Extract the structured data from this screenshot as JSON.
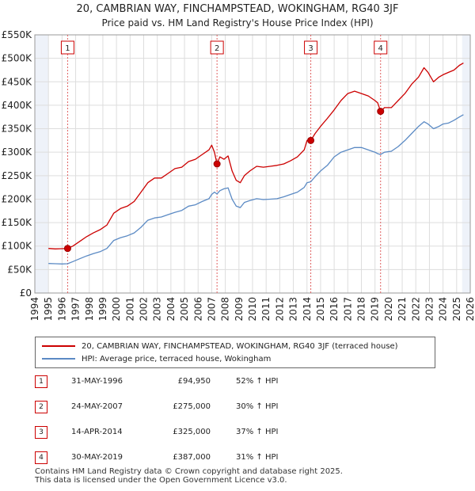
{
  "title": "20, CAMBRIAN WAY, FINCHAMPSTEAD, WOKINGHAM, RG40 3JF",
  "subtitle": "Price paid vs. HM Land Registry's House Price Index (HPI)",
  "colors": {
    "property": "#cc0000",
    "hpi": "#5b8ac4",
    "grid": "#dddddd",
    "shade": "#eef2f9",
    "marker_line": "#e06060"
  },
  "chart_data": {
    "type": "line",
    "title": "20, CAMBRIAN WAY, FINCHAMPSTEAD, WOKINGHAM, RG40 3JF",
    "subtitle": "Price paid vs. HM Land Registry's House Price Index (HPI)",
    "xlim": [
      1994,
      2026
    ],
    "ylim": [
      0,
      550000
    ],
    "x_ticks": [
      "1994",
      "1995",
      "1996",
      "1997",
      "1998",
      "1999",
      "2000",
      "2001",
      "2002",
      "2003",
      "2004",
      "2005",
      "2006",
      "2007",
      "2008",
      "2009",
      "2010",
      "2011",
      "2012",
      "2013",
      "2014",
      "2015",
      "2016",
      "2017",
      "2018",
      "2019",
      "2020",
      "2021",
      "2022",
      "2023",
      "2024",
      "2025",
      "2026"
    ],
    "y_ticks": [
      {
        "value": 0,
        "label": "£0"
      },
      {
        "value": 50000,
        "label": "£50K"
      },
      {
        "value": 100000,
        "label": "£100K"
      },
      {
        "value": 150000,
        "label": "£150K"
      },
      {
        "value": 200000,
        "label": "£200K"
      },
      {
        "value": 250000,
        "label": "£250K"
      },
      {
        "value": 300000,
        "label": "£300K"
      },
      {
        "value": 350000,
        "label": "£350K"
      },
      {
        "value": 400000,
        "label": "£400K"
      },
      {
        "value": 450000,
        "label": "£450K"
      },
      {
        "value": 500000,
        "label": "£500K"
      },
      {
        "value": 550000,
        "label": "£550K"
      }
    ],
    "shaded_ranges": [
      [
        1994,
        1995
      ],
      [
        2025.4,
        2026
      ]
    ],
    "series": [
      {
        "name": "20, CAMBRIAN WAY, FINCHAMPSTEAD, WOKINGHAM, RG40 3JF (terraced house)",
        "color": "#cc0000",
        "x": [
          1995.0,
          1995.5,
          1996.0,
          1996.41,
          1996.8,
          1997.3,
          1997.8,
          1998.3,
          1998.8,
          1999.3,
          1999.8,
          2000.3,
          2000.8,
          2001.3,
          2001.8,
          2002.3,
          2002.8,
          2003.3,
          2003.8,
          2004.3,
          2004.8,
          2005.3,
          2005.8,
          2006.3,
          2006.8,
          2007.0,
          2007.2,
          2007.39,
          2007.6,
          2007.9,
          2008.2,
          2008.5,
          2008.8,
          2009.1,
          2009.4,
          2009.8,
          2010.3,
          2010.8,
          2011.3,
          2011.8,
          2012.3,
          2012.8,
          2013.3,
          2013.8,
          2014.0,
          2014.28,
          2014.6,
          2015.0,
          2015.5,
          2016.0,
          2016.5,
          2017.0,
          2017.5,
          2018.0,
          2018.5,
          2019.0,
          2019.2,
          2019.41,
          2019.7,
          2020.2,
          2020.7,
          2021.2,
          2021.7,
          2022.2,
          2022.6,
          2022.9,
          2023.3,
          2023.7,
          2024.0,
          2024.4,
          2024.8,
          2025.2,
          2025.5
        ],
        "values": [
          95000,
          94000,
          94500,
          94950,
          100000,
          110000,
          120000,
          128000,
          135000,
          145000,
          170000,
          180000,
          185000,
          195000,
          215000,
          235000,
          245000,
          245000,
          255000,
          265000,
          268000,
          280000,
          285000,
          295000,
          305000,
          315000,
          300000,
          275000,
          290000,
          285000,
          292000,
          260000,
          240000,
          235000,
          250000,
          260000,
          270000,
          268000,
          270000,
          272000,
          275000,
          282000,
          290000,
          305000,
          325000,
          325000,
          340000,
          355000,
          372000,
          390000,
          410000,
          425000,
          430000,
          425000,
          420000,
          410000,
          405000,
          387000,
          395000,
          395000,
          410000,
          425000,
          445000,
          460000,
          480000,
          470000,
          450000,
          460000,
          465000,
          470000,
          475000,
          485000,
          490000
        ]
      },
      {
        "name": "HPI: Average price, terraced house, Wokingham",
        "color": "#5b8ac4",
        "x": [
          1995.0,
          1995.5,
          1996.0,
          1996.41,
          1996.8,
          1997.3,
          1997.8,
          1998.3,
          1998.8,
          1999.3,
          1999.8,
          2000.3,
          2000.8,
          2001.3,
          2001.8,
          2002.3,
          2002.8,
          2003.3,
          2003.8,
          2004.3,
          2004.8,
          2005.3,
          2005.8,
          2006.3,
          2006.8,
          2007.0,
          2007.2,
          2007.39,
          2007.6,
          2007.9,
          2008.2,
          2008.5,
          2008.8,
          2009.1,
          2009.4,
          2009.8,
          2010.3,
          2010.8,
          2011.3,
          2011.8,
          2012.3,
          2012.8,
          2013.3,
          2013.8,
          2014.0,
          2014.28,
          2014.6,
          2015.0,
          2015.5,
          2016.0,
          2016.5,
          2017.0,
          2017.5,
          2018.0,
          2018.5,
          2019.0,
          2019.2,
          2019.41,
          2019.7,
          2020.2,
          2020.7,
          2021.2,
          2021.7,
          2022.2,
          2022.6,
          2022.9,
          2023.3,
          2023.7,
          2024.0,
          2024.4,
          2024.8,
          2025.2,
          2025.5
        ],
        "values": [
          63000,
          62500,
          62000,
          62400,
          67000,
          73000,
          79000,
          84000,
          88000,
          95000,
          112000,
          118000,
          122000,
          128000,
          140000,
          155000,
          160000,
          162000,
          167000,
          172000,
          176000,
          185000,
          188000,
          195000,
          201000,
          210000,
          215000,
          211000,
          218000,
          222000,
          224000,
          200000,
          185000,
          182000,
          193000,
          197000,
          201000,
          199000,
          200000,
          201000,
          205000,
          210000,
          215000,
          225000,
          235000,
          237000,
          248000,
          260000,
          272000,
          290000,
          300000,
          305000,
          310000,
          310000,
          305000,
          300000,
          297000,
          295000,
          300000,
          302000,
          312000,
          325000,
          340000,
          355000,
          365000,
          360000,
          350000,
          355000,
          360000,
          362000,
          368000,
          375000,
          380000
        ]
      }
    ],
    "sales": [
      {
        "id": "1",
        "x": 1996.41,
        "value": 94950
      },
      {
        "id": "2",
        "x": 2007.39,
        "value": 275000
      },
      {
        "id": "3",
        "x": 2014.28,
        "value": 325000
      },
      {
        "id": "4",
        "x": 2019.41,
        "value": 387000
      }
    ]
  },
  "legend": {
    "property": "20, CAMBRIAN WAY, FINCHAMPSTEAD, WOKINGHAM, RG40 3JF (terraced house)",
    "hpi": "HPI: Average price, terraced house, Wokingham"
  },
  "sales_table": [
    {
      "num": "1",
      "date": "31-MAY-1996",
      "price": "£94,950",
      "hpi": "52% ↑ HPI"
    },
    {
      "num": "2",
      "date": "24-MAY-2007",
      "price": "£275,000",
      "hpi": "30% ↑ HPI"
    },
    {
      "num": "3",
      "date": "14-APR-2014",
      "price": "£325,000",
      "hpi": "37% ↑ HPI"
    },
    {
      "num": "4",
      "date": "30-MAY-2019",
      "price": "£387,000",
      "hpi": "31% ↑ HPI"
    }
  ],
  "footer": {
    "line1": "Contains HM Land Registry data © Crown copyright and database right 2025.",
    "line2": "This data is licensed under the Open Government Licence v3.0."
  }
}
